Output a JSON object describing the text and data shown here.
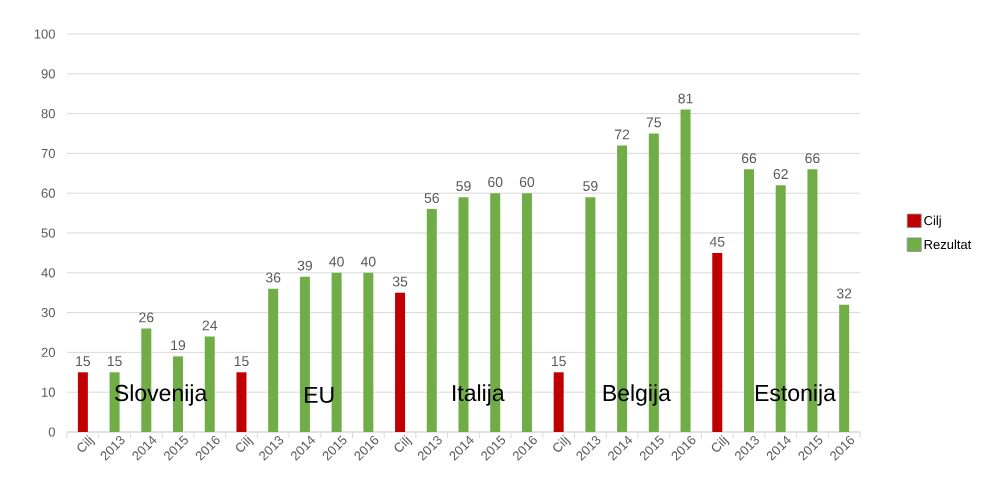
{
  "chart_data": {
    "type": "bar",
    "categories": [
      "Cilj",
      "2013",
      "2014",
      "2015",
      "2016",
      "Cilj",
      "2013",
      "2014",
      "2015",
      "2016",
      "Cilj",
      "2013",
      "2014",
      "2015",
      "2016",
      "Cilj",
      "2013",
      "2014",
      "2015",
      "2016",
      "Cilj",
      "2013",
      "2014",
      "2015",
      "2016"
    ],
    "series": [
      {
        "name": "Cilj",
        "color": "#c00000",
        "values": [
          15,
          null,
          null,
          null,
          null,
          15,
          null,
          null,
          null,
          null,
          35,
          null,
          null,
          null,
          null,
          15,
          null,
          null,
          null,
          null,
          45,
          null,
          null,
          null,
          null
        ]
      },
      {
        "name": "Rezultat",
        "color": "#70ad47",
        "values": [
          null,
          15,
          26,
          19,
          24,
          null,
          36,
          39,
          40,
          40,
          null,
          56,
          59,
          60,
          60,
          null,
          59,
          72,
          75,
          81,
          null,
          66,
          62,
          66,
          32
        ]
      }
    ],
    "ylim": [
      0,
      100
    ],
    "yticks": [
      0,
      10,
      20,
      30,
      40,
      50,
      60,
      70,
      80,
      90,
      100
    ],
    "grid": "y",
    "legend": "right",
    "data_labels": true,
    "annotations": [
      "Slovenija",
      "EU",
      "Italija",
      "Belgija",
      "Estonija"
    ]
  }
}
